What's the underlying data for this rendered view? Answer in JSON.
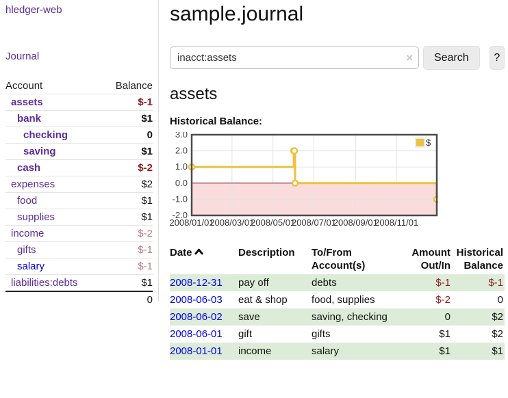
{
  "app": {
    "title": "hledger-web"
  },
  "colors": {
    "link_purple": "#5b2d9b",
    "link_blue": "#0000ee",
    "negative_strong": "#8f1a1a",
    "negative_muted": "#b97c7c",
    "row_green": "#ddecd8",
    "chart_gold": "#edc240",
    "chart_negative_region": "#fbdcdc",
    "chart_zero_line": "#8b0000"
  },
  "sidebar": {
    "journal_link": "Journal",
    "head": {
      "account": "Account",
      "balance": "Balance"
    },
    "accounts": [
      {
        "account": "assets",
        "depth": 1,
        "bold": true,
        "blue": false,
        "balance": "$-1",
        "balance_class": "neg-strong"
      },
      {
        "account": "bank",
        "depth": 2,
        "bold": true,
        "blue": false,
        "balance": "$1",
        "balance_class": "pos-bold"
      },
      {
        "account": "checking",
        "depth": 3,
        "bold": true,
        "blue": false,
        "balance": "0",
        "balance_class": "pos-bold"
      },
      {
        "account": "saving",
        "depth": 3,
        "bold": true,
        "blue": false,
        "balance": "$1",
        "balance_class": "pos-bold"
      },
      {
        "account": "cash",
        "depth": 2,
        "bold": true,
        "blue": false,
        "balance": "$-2",
        "balance_class": "neg-strong"
      },
      {
        "account": "expenses",
        "depth": 1,
        "bold": false,
        "blue": false,
        "balance": "$2",
        "balance_class": "pos"
      },
      {
        "account": "food",
        "depth": 2,
        "bold": false,
        "blue": false,
        "balance": "$1",
        "balance_class": "pos"
      },
      {
        "account": "supplies",
        "depth": 2,
        "bold": false,
        "blue": false,
        "balance": "$1",
        "balance_class": "pos"
      },
      {
        "account": "income",
        "depth": 1,
        "bold": false,
        "blue": false,
        "balance": "$-2",
        "balance_class": "neg-muted"
      },
      {
        "account": "gifts",
        "depth": 2,
        "bold": false,
        "blue": false,
        "balance": "$-1",
        "balance_class": "neg-muted"
      },
      {
        "account": "salary",
        "depth": 2,
        "bold": false,
        "blue": true,
        "balance": "$-1",
        "balance_class": "neg-muted"
      },
      {
        "account": "liabilities:debts",
        "depth": 1,
        "bold": false,
        "blue": false,
        "balance": "$1",
        "balance_class": "pos"
      }
    ],
    "total": "0"
  },
  "main": {
    "title": "sample.journal",
    "search": {
      "value": "inacct:assets",
      "clear_icon": "×",
      "button_label": "Search",
      "help_label": "?"
    },
    "account_heading": "assets",
    "chart_label": "Historical Balance:"
  },
  "chart_data": {
    "type": "line",
    "title": "Historical Balance",
    "step": true,
    "series": [
      {
        "name": "$",
        "color": "#edc240",
        "points": [
          [
            "2008-01-01",
            1
          ],
          [
            "2008-06-01",
            2
          ],
          [
            "2008-06-02",
            2
          ],
          [
            "2008-06-03",
            0
          ],
          [
            "2008-12-31",
            -1
          ]
        ]
      }
    ],
    "x_ticks": [
      "2008/01/01",
      "2008/03/01",
      "2008/05/01",
      "2008/07/01",
      "2008/09/01",
      "2008/11/01"
    ],
    "y_ticks": [
      "3.0",
      "2.0",
      "1.0",
      "0.0",
      "-1.0",
      "-2.0"
    ],
    "ylim": [
      -2,
      3
    ],
    "x_start": "2008-01-01",
    "x_end": "2008-12-31",
    "grid": true,
    "legend": {
      "label": "$",
      "position": "top-right"
    },
    "negative_region": true
  },
  "register": {
    "head": {
      "date": "Date",
      "description": "Description",
      "accounts": "To/From Account(s)",
      "amount": "Amount Out/In",
      "balance": "Historical Balance"
    },
    "rows": [
      {
        "date": "2008-12-31",
        "description": "pay off",
        "accounts": "debts",
        "amount": "$-1",
        "amount_class": "neg",
        "balance": "$-1",
        "balance_class": "neg",
        "green": true
      },
      {
        "date": "2008-06-03",
        "description": "eat & shop",
        "accounts": "food, supplies",
        "amount": "$-2",
        "amount_class": "neg",
        "balance": "0",
        "balance_class": "pos",
        "green": false
      },
      {
        "date": "2008-06-02",
        "description": "save",
        "accounts": "saving, checking",
        "amount": "0",
        "amount_class": "pos",
        "balance": "$2",
        "balance_class": "pos",
        "green": true
      },
      {
        "date": "2008-06-01",
        "description": "gift",
        "accounts": "gifts",
        "amount": "$1",
        "amount_class": "pos",
        "balance": "$2",
        "balance_class": "pos",
        "green": false
      },
      {
        "date": "2008-01-01",
        "description": "income",
        "accounts": "salary",
        "amount": "$1",
        "amount_class": "pos",
        "balance": "$1",
        "balance_class": "pos",
        "green": true
      }
    ]
  }
}
